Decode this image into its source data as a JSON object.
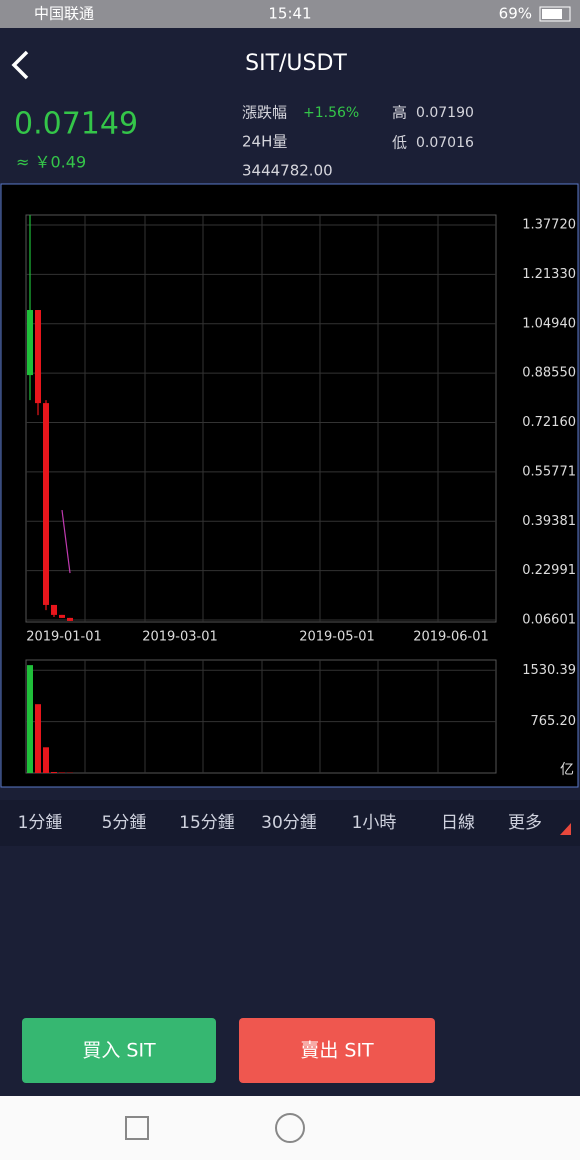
{
  "status_bar": {
    "carrier": "中国联通",
    "time": "15:41",
    "battery": "69%"
  },
  "header": {
    "title": "SIT/USDT"
  },
  "stats": {
    "price": "0.07149",
    "cny": "≈ ￥0.49",
    "change_label": "漲跌幅",
    "change": "+1.56%",
    "volume_label": "24H量",
    "volume": "3444782.00",
    "high_label": "高",
    "high": "0.07190",
    "low_label": "低",
    "low": "0.07016"
  },
  "chart_data": {
    "type": "candlestick",
    "xtick_labels": [
      "2019-01-01",
      "2019-03-01",
      "2019-05-01",
      "2019-06-01"
    ],
    "open": [
      0.879,
      1.095,
      0.786,
      0.116,
      0.083,
      0.073
    ],
    "high": [
      1.41,
      1.095,
      0.796,
      0.116,
      0.083,
      0.073
    ],
    "low": [
      0.796,
      0.746,
      0.099,
      0.076,
      0.073,
      0.063
    ],
    "close": [
      1.095,
      0.786,
      0.116,
      0.083,
      0.073,
      0.063
    ],
    "ma": [
      null,
      null,
      null,
      null,
      0.431,
      0.222
    ],
    "ma_color": "#c03ab0",
    "up_color": "#1fbf3a",
    "down_color": "#e8161c",
    "ylim": [
      0.0594,
      1.4104
    ],
    "yticks": [
      {
        "value": 1.3772,
        "label": "1.37720"
      },
      {
        "value": 1.2133,
        "label": "1.21330"
      },
      {
        "value": 1.0494,
        "label": "1.04940"
      },
      {
        "value": 0.8855,
        "label": "0.88550"
      },
      {
        "value": 0.7216,
        "label": "0.72160"
      },
      {
        "value": 0.55771,
        "label": "0.55771"
      },
      {
        "value": 0.39381,
        "label": "0.39381"
      },
      {
        "value": 0.22991,
        "label": "0.22991"
      },
      {
        "value": 0.06601,
        "label": "0.06601"
      }
    ],
    "volume": [
      1607,
      1025,
      383,
      15,
      8,
      5
    ],
    "volume_ylim": [
      0,
      1683.4
    ],
    "volume_yticks": [
      1530.39,
      {
        "value": 765.2,
        "label": "765.20"
      }
    ],
    "volume_unit": "亿"
  },
  "tabs": [
    "1分鍾",
    "5分鍾",
    "15分鍾",
    "30分鍾",
    "1小時",
    "日線",
    "更多"
  ],
  "buttons": {
    "buy": "買入 SIT",
    "sell": "賣出 SIT"
  }
}
